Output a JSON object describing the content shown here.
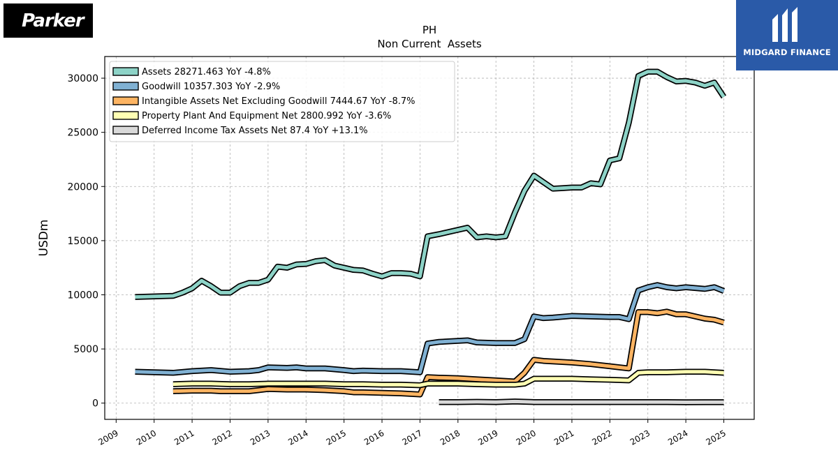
{
  "logos": {
    "left_text": "Parker",
    "right_text": "MIDGARD FINANCE"
  },
  "chart_data": {
    "type": "line",
    "title": "PH",
    "subtitle": "Non Current  Assets",
    "xlabel": "",
    "ylabel": "USDm",
    "xlim": [
      2008.7,
      2025.8
    ],
    "ylim": [
      -1500,
      32000
    ],
    "yticks": [
      0,
      5000,
      10000,
      15000,
      20000,
      25000,
      30000
    ],
    "xticks": [
      "2009",
      "2010",
      "2011",
      "2012",
      "2013",
      "2014",
      "2015",
      "2016",
      "2017",
      "2018",
      "2019",
      "2020",
      "2021",
      "2022",
      "2023",
      "2024",
      "2025"
    ],
    "grid": true,
    "legend_position": "top-left",
    "series": [
      {
        "name": "Assets  28271.463 YoY -4.8%",
        "color": "#8dd3c7",
        "points": [
          [
            2009.5,
            9800
          ],
          [
            2010.5,
            9900
          ],
          [
            2010.75,
            10200
          ],
          [
            2011.0,
            10600
          ],
          [
            2011.25,
            11300
          ],
          [
            2011.5,
            10800
          ],
          [
            2011.75,
            10200
          ],
          [
            2012.0,
            10200
          ],
          [
            2012.25,
            10800
          ],
          [
            2012.5,
            11100
          ],
          [
            2012.75,
            11100
          ],
          [
            2013.0,
            11400
          ],
          [
            2013.25,
            12600
          ],
          [
            2013.5,
            12500
          ],
          [
            2013.75,
            12800
          ],
          [
            2014.0,
            12850
          ],
          [
            2014.25,
            13100
          ],
          [
            2014.5,
            13200
          ],
          [
            2014.75,
            12700
          ],
          [
            2015.0,
            12500
          ],
          [
            2015.25,
            12300
          ],
          [
            2015.5,
            12250
          ],
          [
            2015.75,
            11950
          ],
          [
            2016.0,
            11700
          ],
          [
            2016.25,
            12000
          ],
          [
            2016.5,
            12000
          ],
          [
            2016.75,
            11950
          ],
          [
            2017.0,
            11700
          ],
          [
            2017.2,
            15400
          ],
          [
            2017.5,
            15600
          ],
          [
            2017.75,
            15800
          ],
          [
            2018.0,
            16000
          ],
          [
            2018.25,
            16200
          ],
          [
            2018.5,
            15300
          ],
          [
            2018.75,
            15400
          ],
          [
            2019.0,
            15300
          ],
          [
            2019.25,
            15400
          ],
          [
            2019.5,
            17600
          ],
          [
            2019.75,
            19600
          ],
          [
            2020.0,
            21000
          ],
          [
            2020.25,
            20400
          ],
          [
            2020.5,
            19800
          ],
          [
            2020.75,
            19850
          ],
          [
            2021.0,
            19900
          ],
          [
            2021.25,
            19900
          ],
          [
            2021.5,
            20300
          ],
          [
            2021.75,
            20200
          ],
          [
            2022.0,
            22400
          ],
          [
            2022.25,
            22600
          ],
          [
            2022.5,
            25900
          ],
          [
            2022.75,
            30200
          ],
          [
            2023.0,
            30600
          ],
          [
            2023.25,
            30600
          ],
          [
            2023.5,
            30100
          ],
          [
            2023.75,
            29700
          ],
          [
            2024.0,
            29750
          ],
          [
            2024.25,
            29600
          ],
          [
            2024.5,
            29300
          ],
          [
            2024.75,
            29600
          ],
          [
            2025.0,
            28271
          ]
        ]
      },
      {
        "name": "Goodwill  10357.303 YoY -2.9%",
        "color": "#80b1d3",
        "points": [
          [
            2009.5,
            2900
          ],
          [
            2010.0,
            2850
          ],
          [
            2010.5,
            2800
          ],
          [
            2011.0,
            2950
          ],
          [
            2011.5,
            3050
          ],
          [
            2012.0,
            2900
          ],
          [
            2012.5,
            2950
          ],
          [
            2012.75,
            3050
          ],
          [
            2013.0,
            3300
          ],
          [
            2013.5,
            3250
          ],
          [
            2013.75,
            3300
          ],
          [
            2014.0,
            3200
          ],
          [
            2014.5,
            3200
          ],
          [
            2015.0,
            3050
          ],
          [
            2015.25,
            2950
          ],
          [
            2015.5,
            3000
          ],
          [
            2016.0,
            2950
          ],
          [
            2016.5,
            2950
          ],
          [
            2017.0,
            2850
          ],
          [
            2017.2,
            5500
          ],
          [
            2017.5,
            5650
          ],
          [
            2018.0,
            5750
          ],
          [
            2018.25,
            5800
          ],
          [
            2018.5,
            5600
          ],
          [
            2019.0,
            5550
          ],
          [
            2019.5,
            5550
          ],
          [
            2019.75,
            5900
          ],
          [
            2020.0,
            8000
          ],
          [
            2020.25,
            7850
          ],
          [
            2020.5,
            7900
          ],
          [
            2021.0,
            8050
          ],
          [
            2021.5,
            8000
          ],
          [
            2022.0,
            7950
          ],
          [
            2022.25,
            7950
          ],
          [
            2022.5,
            7750
          ],
          [
            2022.75,
            10400
          ],
          [
            2023.0,
            10700
          ],
          [
            2023.25,
            10900
          ],
          [
            2023.5,
            10700
          ],
          [
            2023.75,
            10600
          ],
          [
            2024.0,
            10700
          ],
          [
            2024.5,
            10550
          ],
          [
            2024.75,
            10700
          ],
          [
            2025.0,
            10357
          ]
        ]
      },
      {
        "name": "Intangible Assets Net Excluding Goodwill  7444.67 YoY -8.7%",
        "color": "#fdb462",
        "points": [
          [
            2010.5,
            1100
          ],
          [
            2011.0,
            1150
          ],
          [
            2011.5,
            1150
          ],
          [
            2011.75,
            1100
          ],
          [
            2012.0,
            1100
          ],
          [
            2012.5,
            1100
          ],
          [
            2012.75,
            1200
          ],
          [
            2013.0,
            1300
          ],
          [
            2013.5,
            1250
          ],
          [
            2014.0,
            1250
          ],
          [
            2014.5,
            1200
          ],
          [
            2015.0,
            1100
          ],
          [
            2015.25,
            1000
          ],
          [
            2015.5,
            1000
          ],
          [
            2016.0,
            950
          ],
          [
            2016.5,
            900
          ],
          [
            2017.0,
            800
          ],
          [
            2017.2,
            2400
          ],
          [
            2017.5,
            2350
          ],
          [
            2018.0,
            2300
          ],
          [
            2018.5,
            2200
          ],
          [
            2019.0,
            2100
          ],
          [
            2019.5,
            2000
          ],
          [
            2019.75,
            2800
          ],
          [
            2020.0,
            4000
          ],
          [
            2020.25,
            3900
          ],
          [
            2020.5,
            3850
          ],
          [
            2021.0,
            3750
          ],
          [
            2021.5,
            3600
          ],
          [
            2022.0,
            3400
          ],
          [
            2022.5,
            3200
          ],
          [
            2022.75,
            8400
          ],
          [
            2023.0,
            8400
          ],
          [
            2023.25,
            8300
          ],
          [
            2023.5,
            8450
          ],
          [
            2023.75,
            8200
          ],
          [
            2024.0,
            8200
          ],
          [
            2024.5,
            7800
          ],
          [
            2024.75,
            7700
          ],
          [
            2025.0,
            7445
          ]
        ]
      },
      {
        "name": "Property Plant And Equipment Net  2800.992 YoY -3.6%",
        "color": "#ffffb3",
        "points": [
          [
            2010.5,
            1750
          ],
          [
            2011.0,
            1800
          ],
          [
            2011.5,
            1800
          ],
          [
            2012.0,
            1750
          ],
          [
            2012.5,
            1750
          ],
          [
            2013.0,
            1800
          ],
          [
            2013.5,
            1800
          ],
          [
            2014.0,
            1800
          ],
          [
            2014.5,
            1800
          ],
          [
            2015.0,
            1750
          ],
          [
            2015.5,
            1750
          ],
          [
            2016.0,
            1700
          ],
          [
            2016.5,
            1700
          ],
          [
            2017.0,
            1650
          ],
          [
            2017.2,
            1800
          ],
          [
            2017.5,
            1800
          ],
          [
            2018.0,
            1800
          ],
          [
            2018.5,
            1750
          ],
          [
            2019.0,
            1700
          ],
          [
            2019.5,
            1700
          ],
          [
            2019.75,
            1800
          ],
          [
            2020.0,
            2250
          ],
          [
            2020.5,
            2250
          ],
          [
            2021.0,
            2250
          ],
          [
            2021.5,
            2200
          ],
          [
            2022.0,
            2150
          ],
          [
            2022.5,
            2100
          ],
          [
            2022.75,
            2800
          ],
          [
            2023.0,
            2850
          ],
          [
            2023.5,
            2850
          ],
          [
            2024.0,
            2900
          ],
          [
            2024.5,
            2900
          ],
          [
            2025.0,
            2801
          ]
        ]
      },
      {
        "name": "Deferred Income Tax Assets Net  87.4 YoY +13.1%",
        "color": "#d9d9d9",
        "points": [
          [
            2017.5,
            100
          ],
          [
            2018.0,
            100
          ],
          [
            2018.5,
            120
          ],
          [
            2019.0,
            100
          ],
          [
            2019.5,
            150
          ],
          [
            2020.0,
            100
          ],
          [
            2020.5,
            100
          ],
          [
            2021.0,
            90
          ],
          [
            2021.5,
            90
          ],
          [
            2022.0,
            95
          ],
          [
            2022.5,
            90
          ],
          [
            2023.0,
            100
          ],
          [
            2023.5,
            90
          ],
          [
            2024.0,
            80
          ],
          [
            2024.5,
            85
          ],
          [
            2025.0,
            87.4
          ]
        ]
      }
    ]
  }
}
